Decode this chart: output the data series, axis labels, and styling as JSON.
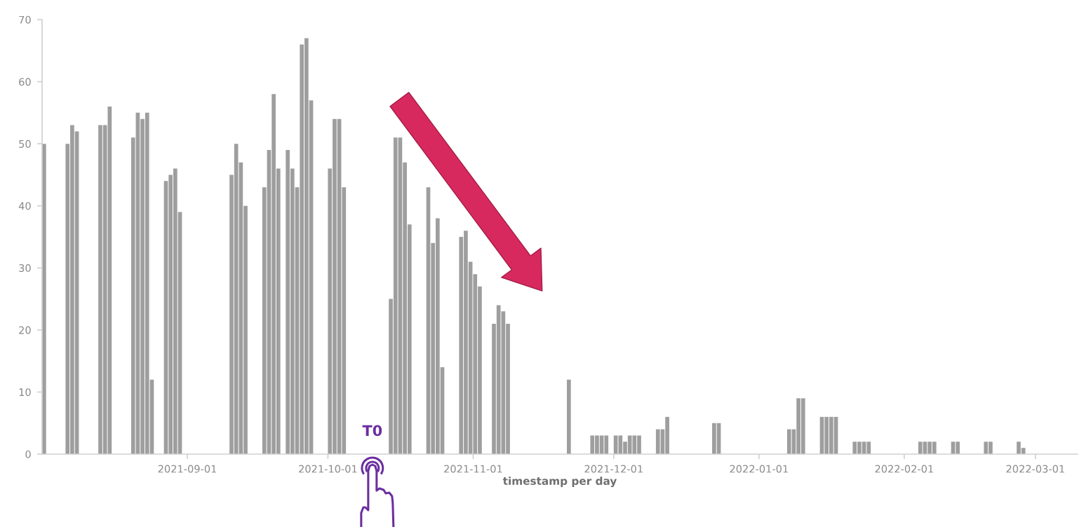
{
  "chart_data": {
    "type": "bar",
    "xlabel": "timestamp per day",
    "x": [
      "2021-08-01",
      "2021-08-06",
      "2021-08-07",
      "2021-08-08",
      "2021-08-13",
      "2021-08-14",
      "2021-08-15",
      "2021-08-20",
      "2021-08-21",
      "2021-08-22",
      "2021-08-23",
      "2021-08-24",
      "2021-08-27",
      "2021-08-28",
      "2021-08-29",
      "2021-08-30",
      "2021-09-10",
      "2021-09-11",
      "2021-09-12",
      "2021-09-13",
      "2021-09-17",
      "2021-09-18",
      "2021-09-19",
      "2021-09-20",
      "2021-09-22",
      "2021-09-23",
      "2021-09-24",
      "2021-09-25",
      "2021-09-26",
      "2021-09-27",
      "2021-10-01",
      "2021-10-02",
      "2021-10-03",
      "2021-10-04",
      "2021-10-14",
      "2021-10-15",
      "2021-10-16",
      "2021-10-17",
      "2021-10-18",
      "2021-10-22",
      "2021-10-23",
      "2021-10-24",
      "2021-10-25",
      "2021-10-29",
      "2021-10-30",
      "2021-10-31",
      "2021-11-01",
      "2021-11-02",
      "2021-11-05",
      "2021-11-06",
      "2021-11-07",
      "2021-11-08",
      "2021-11-21",
      "2021-11-26",
      "2021-11-27",
      "2021-11-28",
      "2021-11-29",
      "2021-12-01",
      "2021-12-02",
      "2021-12-03",
      "2021-12-04",
      "2021-12-05",
      "2021-12-06",
      "2021-12-10",
      "2021-12-11",
      "2021-12-12",
      "2021-12-22",
      "2021-12-23",
      "2022-01-07",
      "2022-01-08",
      "2022-01-09",
      "2022-01-10",
      "2022-01-14",
      "2022-01-15",
      "2022-01-16",
      "2022-01-17",
      "2022-01-21",
      "2022-01-22",
      "2022-01-23",
      "2022-01-24",
      "2022-02-04",
      "2022-02-05",
      "2022-02-06",
      "2022-02-07",
      "2022-02-11",
      "2022-02-12",
      "2022-02-18",
      "2022-02-19",
      "2022-02-25",
      "2022-02-26"
    ],
    "values": [
      50,
      50,
      53,
      52,
      53,
      53,
      56,
      51,
      55,
      54,
      55,
      12,
      44,
      45,
      46,
      39,
      45,
      50,
      47,
      40,
      43,
      49,
      58,
      46,
      49,
      46,
      43,
      66,
      67,
      57,
      46,
      54,
      54,
      43,
      25,
      51,
      51,
      47,
      37,
      43,
      34,
      38,
      14,
      35,
      36,
      31,
      29,
      27,
      21,
      24,
      23,
      21,
      12,
      3,
      3,
      3,
      3,
      3,
      3,
      2,
      3,
      3,
      3,
      4,
      4,
      6,
      5,
      5,
      4,
      4,
      9,
      9,
      6,
      6,
      6,
      6,
      2,
      2,
      2,
      2,
      2,
      2,
      2,
      2,
      2,
      2,
      2,
      2,
      2,
      1
    ],
    "color": "#9e9e9e",
    "xlim": [
      "2021-08-01",
      "2022-03-10"
    ],
    "xticks": [
      "2021-09-01",
      "2021-10-01",
      "2021-11-01",
      "2021-12-01",
      "2022-01-01",
      "2022-02-01",
      "2022-03-01"
    ],
    "ylim": [
      0,
      70
    ],
    "yticks": [
      0,
      10,
      20,
      30,
      40,
      50,
      60,
      70
    ],
    "grid": false,
    "annotations": [
      "T0"
    ]
  }
}
